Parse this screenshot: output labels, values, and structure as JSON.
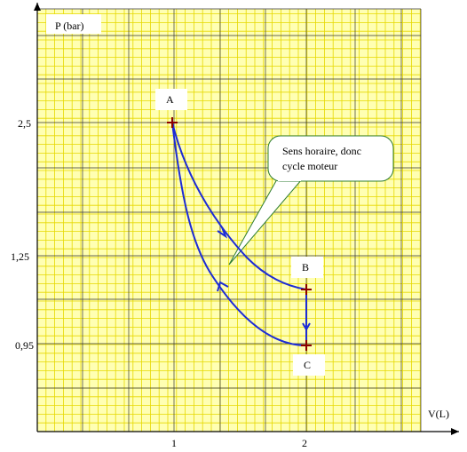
{
  "chart_data": {
    "type": "line",
    "title": "",
    "xlabel": "V(L)",
    "ylabel": "P (bar)",
    "x_ticks": [
      "1",
      "2"
    ],
    "y_ticks": [
      "2,5",
      "1,25",
      "0,95"
    ],
    "grid": true,
    "points": [
      {
        "name": "A",
        "x": 1,
        "y": 2.5
      },
      {
        "name": "B",
        "x": 2,
        "y": 1.1
      },
      {
        "name": "C",
        "x": 2,
        "y": 0.92
      }
    ],
    "segments": [
      {
        "from": "A",
        "to": "B",
        "kind": "curve"
      },
      {
        "from": "B",
        "to": "C",
        "kind": "vertical"
      },
      {
        "from": "C",
        "to": "A",
        "kind": "curve"
      }
    ],
    "annotation": {
      "text_line1": "Sens horaire, donc",
      "text_line2": "cycle moteur"
    },
    "colors": {
      "curve": "#1c2bd6",
      "grid_minor": "#e6d800",
      "grid_major": "#333333",
      "background": "#ffffb3",
      "point": "#8b0000"
    }
  }
}
